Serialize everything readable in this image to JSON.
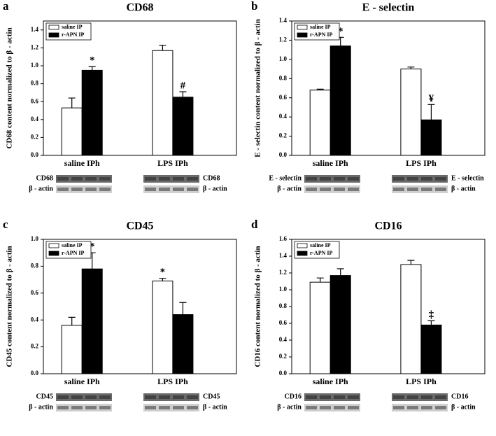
{
  "chart_data": [
    {
      "type": "bar",
      "panel": "a",
      "title": "CD68",
      "y_label": "CD68 content normalized to β - actin",
      "categories": [
        "saline IPh",
        "LPS IPh"
      ],
      "series": [
        {
          "name": "saline IP",
          "color": "#ffffff",
          "values": [
            0.53,
            1.17
          ],
          "errors": [
            0.11,
            0.06
          ],
          "annotations": [
            null,
            null
          ]
        },
        {
          "name": "r-APN IP",
          "color": "#000000",
          "values": [
            0.95,
            0.65
          ],
          "errors": [
            0.04,
            0.06
          ],
          "annotations": [
            "*",
            "#"
          ]
        }
      ],
      "ylim": [
        0,
        1.5
      ],
      "yticks": [
        {
          "value": 0,
          "label": "0.0"
        },
        0.2,
        0.4,
        0.6,
        0.8,
        {
          "value": 1,
          "label": "1.0"
        },
        1.2,
        1.4
      ],
      "blot_labels": [
        [
          "CD68",
          "β - actin"
        ],
        [
          "CD68",
          "β - actin"
        ]
      ]
    },
    {
      "type": "bar",
      "panel": "b",
      "title": "E - selectin",
      "y_label": "E - selectin content normalized to β - actin",
      "categories": [
        "saline IPh",
        "LPS IPh"
      ],
      "series": [
        {
          "name": "saline IP",
          "color": "#ffffff",
          "values": [
            0.68,
            0.9
          ],
          "errors": [
            0.01,
            0.02
          ],
          "annotations": [
            null,
            null
          ]
        },
        {
          "name": "r-APN IP",
          "color": "#000000",
          "values": [
            1.14,
            0.37
          ],
          "errors": [
            0.09,
            0.16
          ],
          "annotations": [
            "*",
            "¥"
          ]
        }
      ],
      "ylim": [
        0,
        1.4
      ],
      "yticks": [
        {
          "value": 0,
          "label": "0.0"
        },
        0.2,
        0.4,
        0.6,
        0.8,
        {
          "value": 1,
          "label": "1.0"
        },
        1.2,
        1.4
      ],
      "blot_labels": [
        [
          "E - selectin",
          "β - actin"
        ],
        [
          "E - selectin",
          "β - actin"
        ]
      ]
    },
    {
      "type": "bar",
      "panel": "c",
      "title": "CD45",
      "y_label": "CD45 content normalized to β - actin",
      "categories": [
        "saline IPh",
        "LPS IPh"
      ],
      "series": [
        {
          "name": "saline IP",
          "color": "#ffffff",
          "values": [
            0.36,
            0.69
          ],
          "errors": [
            0.06,
            0.02
          ],
          "annotations": [
            null,
            "*"
          ]
        },
        {
          "name": "r-APN IP",
          "color": "#000000",
          "values": [
            0.78,
            0.44
          ],
          "errors": [
            0.12,
            0.09
          ],
          "annotations": [
            "*",
            null
          ]
        }
      ],
      "ylim": [
        0,
        1.0
      ],
      "yticks": [
        {
          "value": 0,
          "label": "0.0"
        },
        0.2,
        0.4,
        0.6,
        0.8,
        {
          "value": 1,
          "label": "1.0"
        }
      ],
      "blot_labels": [
        [
          "CD45",
          "β - actin"
        ],
        [
          "CD45",
          "β - actin"
        ]
      ]
    },
    {
      "type": "bar",
      "panel": "d",
      "title": "CD16",
      "y_label": "CD16 content normalized to β - actin",
      "categories": [
        "saline IPh",
        "LPS IPh"
      ],
      "series": [
        {
          "name": "saline IP",
          "color": "#ffffff",
          "values": [
            1.09,
            1.3
          ],
          "errors": [
            0.05,
            0.05
          ],
          "annotations": [
            null,
            null
          ]
        },
        {
          "name": "r-APN IP",
          "color": "#000000",
          "values": [
            1.17,
            0.58
          ],
          "errors": [
            0.08,
            0.05
          ],
          "annotations": [
            null,
            "‡"
          ]
        }
      ],
      "ylim": [
        0,
        1.6
      ],
      "yticks": [
        {
          "value": 0,
          "label": "0.0"
        },
        0.2,
        0.4,
        0.6,
        0.8,
        {
          "value": 1,
          "label": "1.0"
        },
        1.2,
        1.4,
        1.6
      ],
      "blot_labels": [
        [
          "CD16",
          "β - actin"
        ],
        [
          "CD16",
          "β - actin"
        ]
      ]
    }
  ]
}
